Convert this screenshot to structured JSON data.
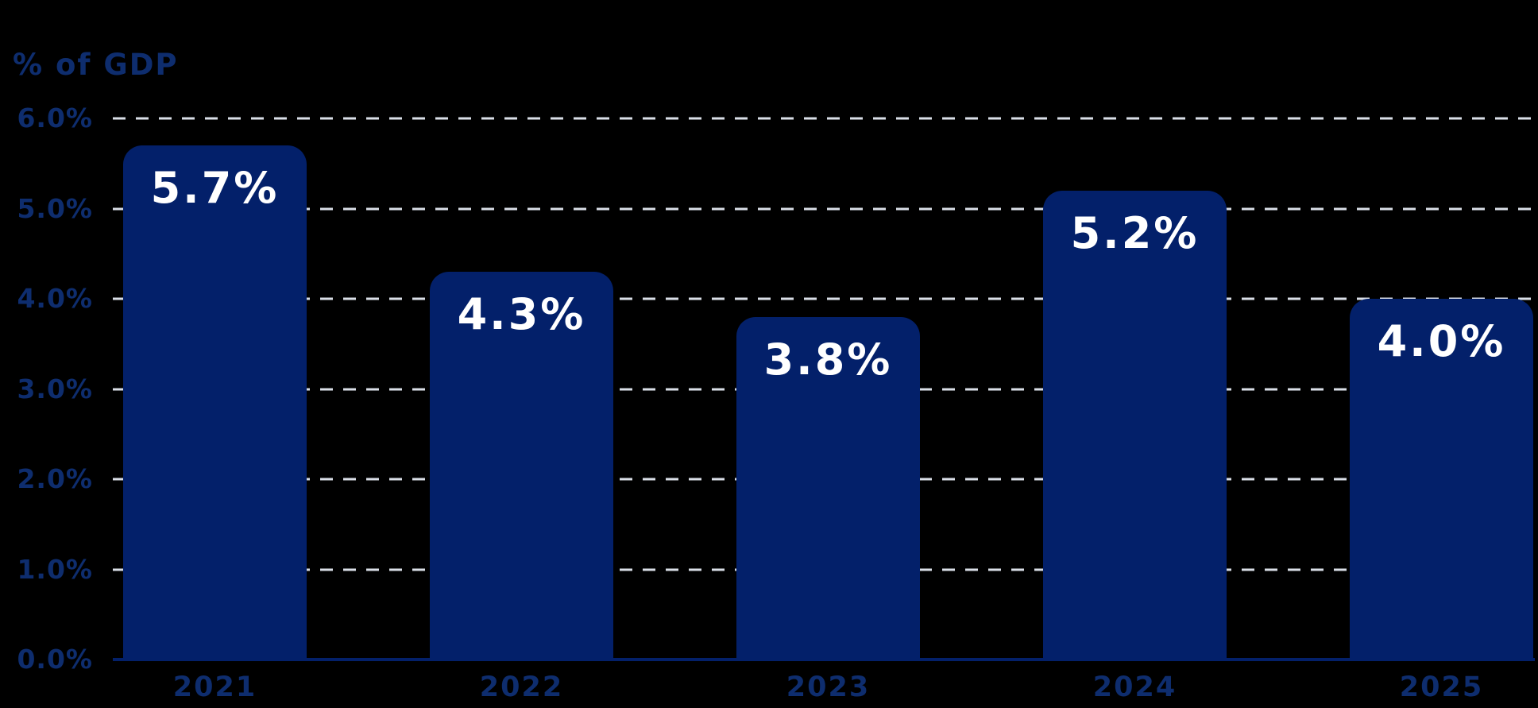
{
  "chart_data": {
    "type": "bar",
    "title": "% of GDP",
    "categories": [
      "2021",
      "2022",
      "2023",
      "2024",
      "2025"
    ],
    "values": [
      5.7,
      4.3,
      3.8,
      5.2,
      4.0
    ],
    "value_labels": [
      "5.7%",
      "4.3%",
      "3.8%",
      "5.2%",
      "4.0%"
    ],
    "y_ticks": [
      "6.0%",
      "5.0%",
      "4.0%",
      "3.0%",
      "2.0%",
      "1.0%",
      "0.0%"
    ],
    "ylim": [
      0,
      6
    ],
    "xlabel": "",
    "ylabel": "% of GDP",
    "grid": "horizontal-dashed",
    "legend": "none",
    "colors": {
      "background": "#000000",
      "bar": "#03206a",
      "bar_label_text": "#ffffff",
      "axis_label_text": "#0e2d6e",
      "gridline": "#dadfe8"
    }
  }
}
